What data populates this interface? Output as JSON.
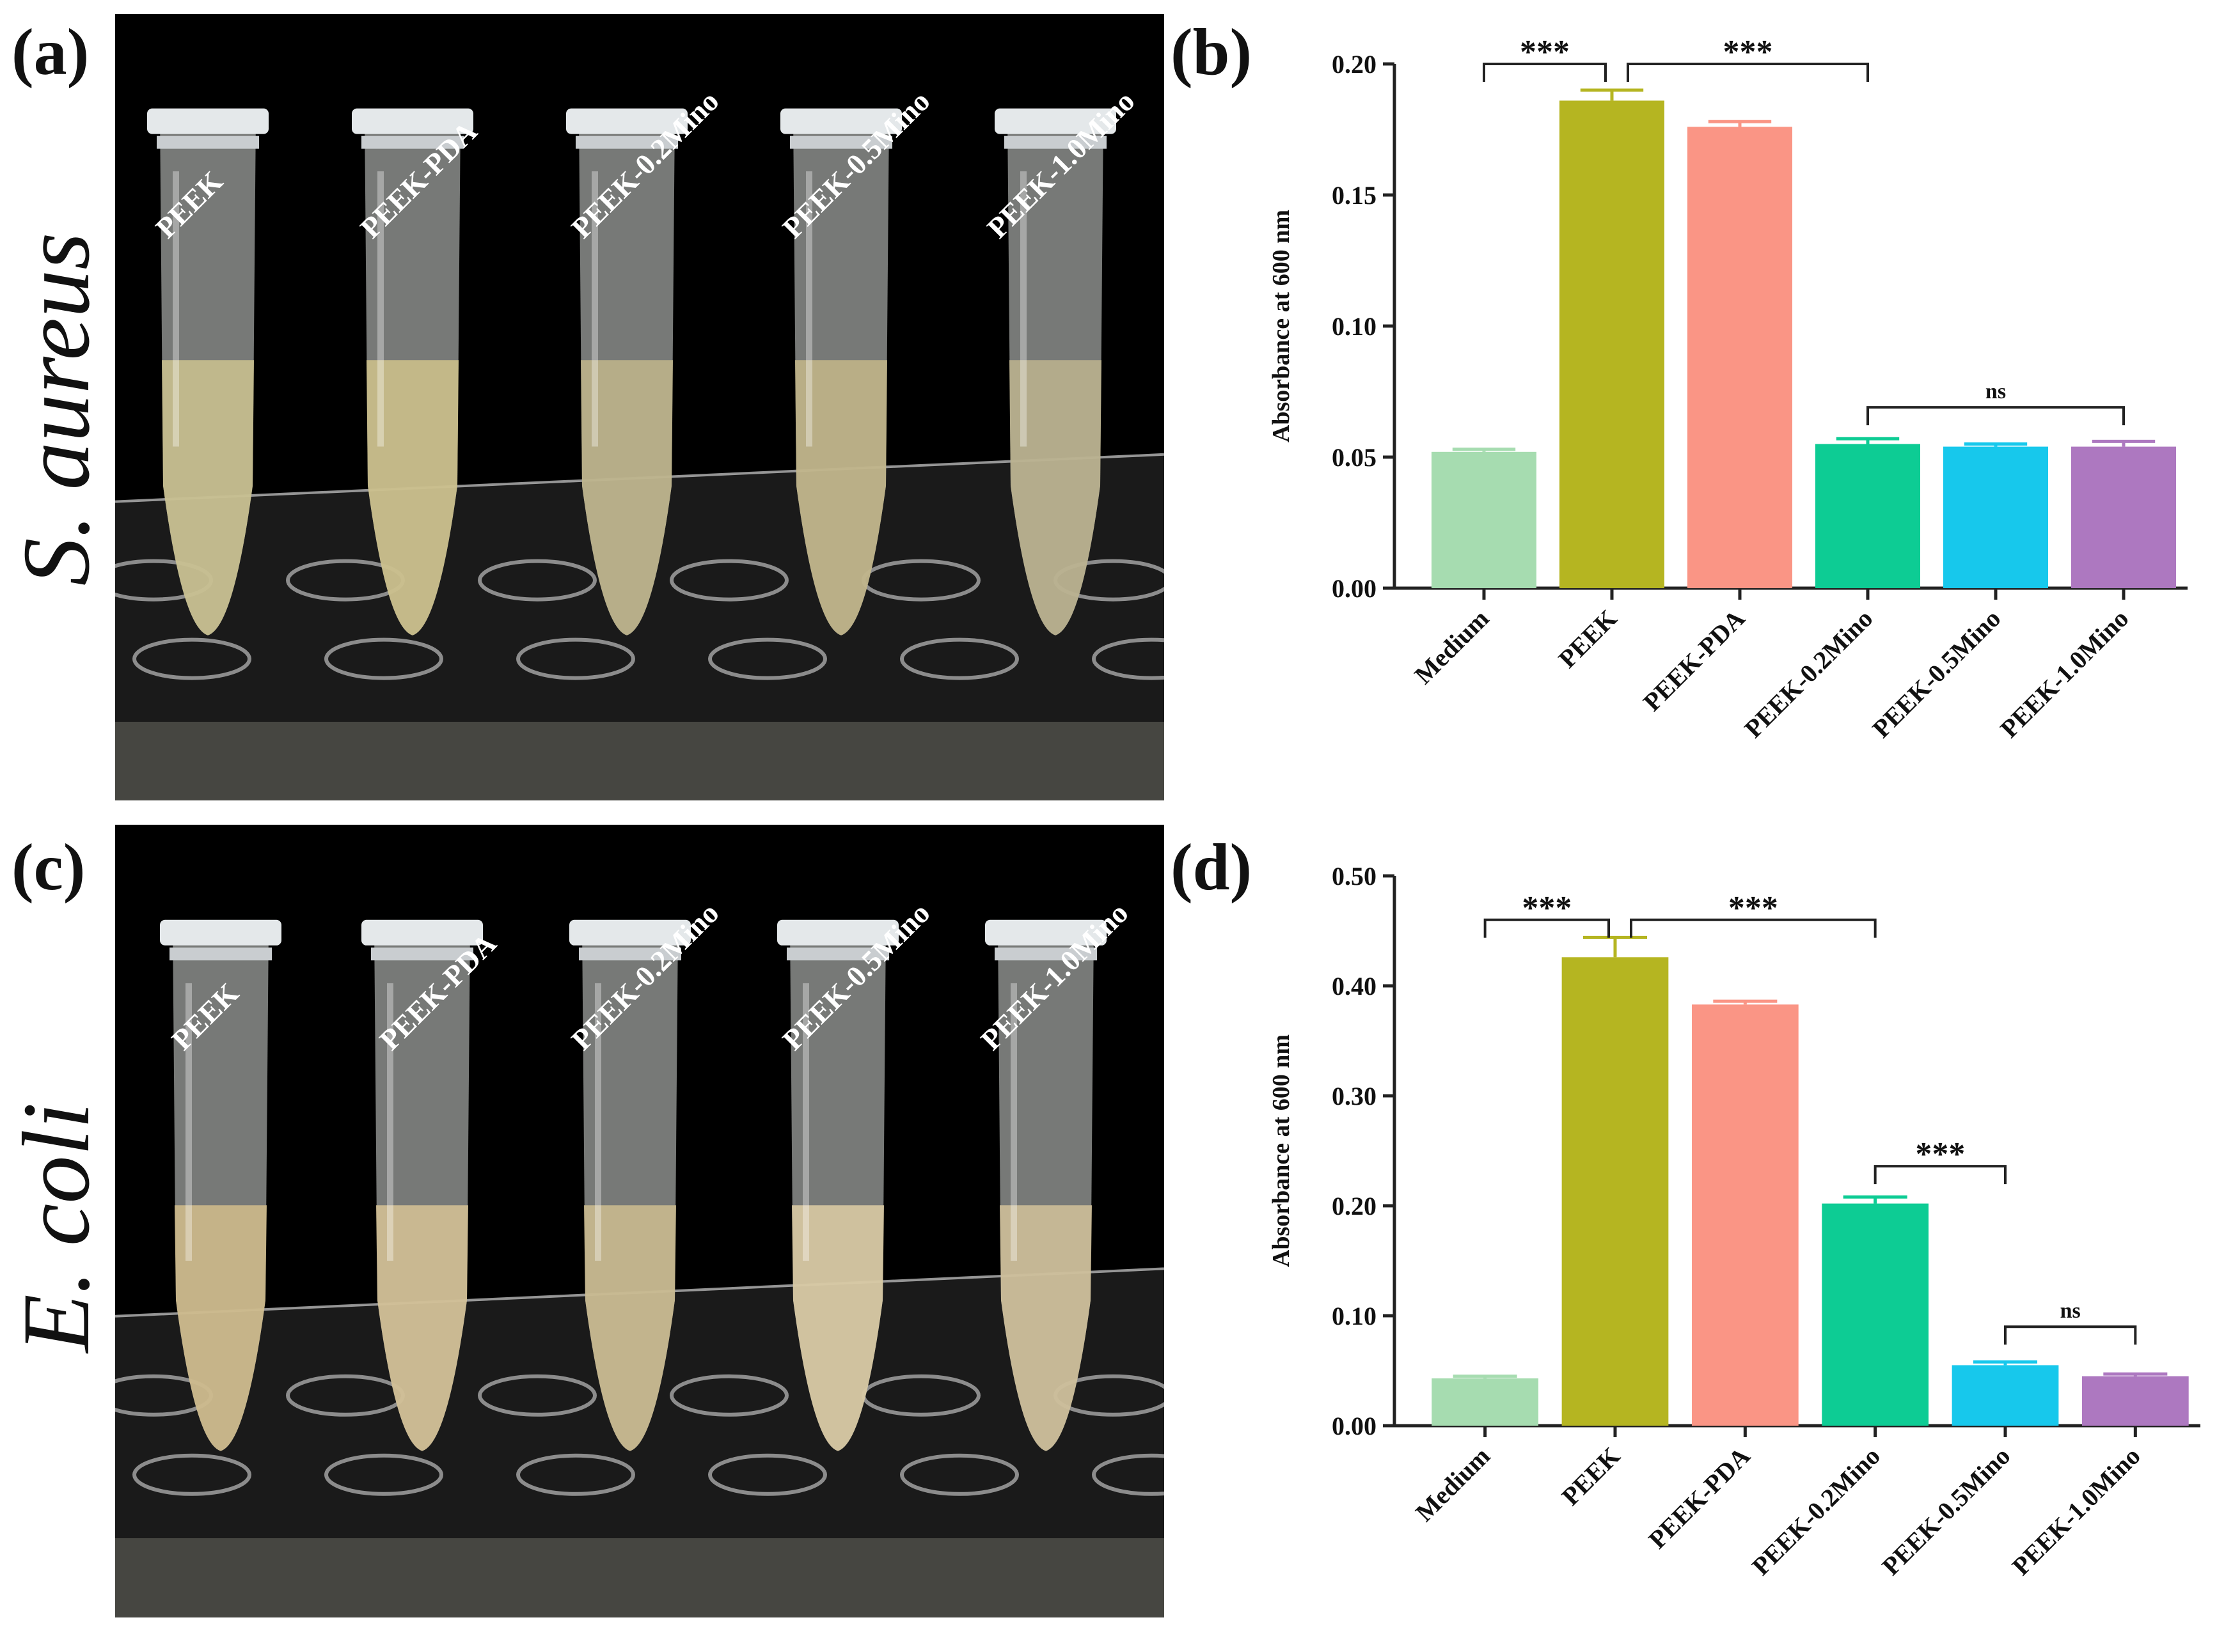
{
  "panels": {
    "a": "(a)",
    "b": "(b)",
    "c": "(c)",
    "d": "(d)"
  },
  "photos": {
    "top": {
      "species": "S. aureus",
      "tube_labels": [
        "PEEK",
        "PEEK-PDA",
        "PEEK-0.2Mino",
        "PEEK-0.5Mino",
        "PEEK-1.0Mino"
      ],
      "liquid_colors": [
        "#c8bf8e",
        "#cbbf8a",
        "#bdb28a",
        "#c0b487",
        "#b9b08d"
      ]
    },
    "bottom": {
      "species": "E. coli",
      "tube_labels": [
        "PEEK",
        "PEEK-PDA",
        "PEEK-0.2Mino",
        "PEEK-0.5Mino",
        "PEEK-1.0Mino"
      ],
      "liquid_colors": [
        "#cdb98a",
        "#d1bf93",
        "#c9b98e",
        "#d8c9a2",
        "#cdbe98"
      ]
    }
  },
  "colors": {
    "Medium": "#a6dcb0",
    "PEEK": "#b5b521",
    "PEEK-PDA": "#fa9585",
    "PEEK-0.2Mino": "#0dcc94",
    "PEEK-0.5Mino": "#17c8ec",
    "PEEK-1.0Mino": "#ad78c0",
    "error": "#b5b521",
    "axis": "#222222"
  },
  "chart_data": [
    {
      "id": "b",
      "type": "bar",
      "categories": [
        "Medium",
        "PEEK",
        "PEEK-PDA",
        "PEEK-0.2Mino",
        "PEEK-0.5Mino",
        "PEEK-1.0Mino"
      ],
      "values": [
        0.052,
        0.186,
        0.176,
        0.055,
        0.054,
        0.054
      ],
      "errors": [
        0.001,
        0.004,
        0.002,
        0.002,
        0.001,
        0.002
      ],
      "ylabel": "Absorbance at 600 nm",
      "ylim": [
        0,
        0.2
      ],
      "yticks": [
        "0.00",
        "0.05",
        "0.10",
        "0.15",
        "0.20"
      ],
      "ytick_values": [
        0,
        0.05,
        0.1,
        0.15,
        0.2
      ],
      "annotations": [
        {
          "from": 0,
          "to": 1,
          "label": "***",
          "y": 0.2
        },
        {
          "from": 1,
          "to": 3,
          "label": "***",
          "y": 0.2
        },
        {
          "from": 3,
          "to": 5,
          "label": "ns",
          "y": 0.069
        }
      ]
    },
    {
      "id": "d",
      "type": "bar",
      "categories": [
        "Medium",
        "PEEK",
        "PEEK-PDA",
        "PEEK-0.2Mino",
        "PEEK-0.5Mino",
        "PEEK-1.0Mino"
      ],
      "values": [
        0.043,
        0.426,
        0.383,
        0.202,
        0.055,
        0.045
      ],
      "errors": [
        0.002,
        0.018,
        0.003,
        0.006,
        0.003,
        0.002
      ],
      "ylabel": "Absorbance at 600 nm",
      "ylim": [
        0,
        0.5
      ],
      "yticks": [
        "0.00",
        "0.10",
        "0.20",
        "0.30",
        "0.40",
        "0.50"
      ],
      "ytick_values": [
        0,
        0.1,
        0.2,
        0.3,
        0.4,
        0.5
      ],
      "annotations": [
        {
          "from": 0,
          "to": 1,
          "label": "***",
          "y": 0.46
        },
        {
          "from": 1,
          "to": 3,
          "label": "***",
          "y": 0.46
        },
        {
          "from": 3,
          "to": 4,
          "label": "***",
          "y": 0.236
        },
        {
          "from": 4,
          "to": 5,
          "label": "ns",
          "y": 0.09
        }
      ]
    }
  ]
}
